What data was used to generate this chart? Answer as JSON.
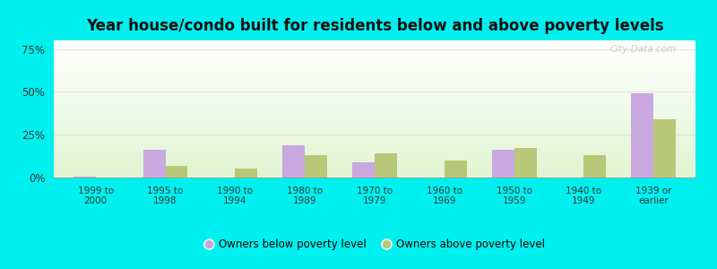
{
  "title": "Year house/condo built for residents below and above poverty levels",
  "categories": [
    "1999 to\n2000",
    "1995 to\n1998",
    "1990 to\n1994",
    "1980 to\n1989",
    "1970 to\n1979",
    "1960 to\n1969",
    "1950 to\n1959",
    "1940 to\n1949",
    "1939 or\nearlier"
  ],
  "below_poverty": [
    0.5,
    16,
    0,
    19,
    9,
    0,
    16,
    0,
    49
  ],
  "above_poverty": [
    0,
    7,
    5,
    13,
    14,
    10,
    17,
    13,
    34
  ],
  "below_color": "#c9a8e0",
  "above_color": "#b8c878",
  "ylim": [
    0,
    80
  ],
  "yticks": [
    0,
    25,
    50,
    75
  ],
  "ytick_labels": [
    "0%",
    "25%",
    "50%",
    "75%"
  ],
  "bar_width": 0.32,
  "outer_bg": "#00f0f0",
  "title_fontsize": 12,
  "legend_below_label": "Owners below poverty level",
  "legend_above_label": "Owners above poverty level"
}
